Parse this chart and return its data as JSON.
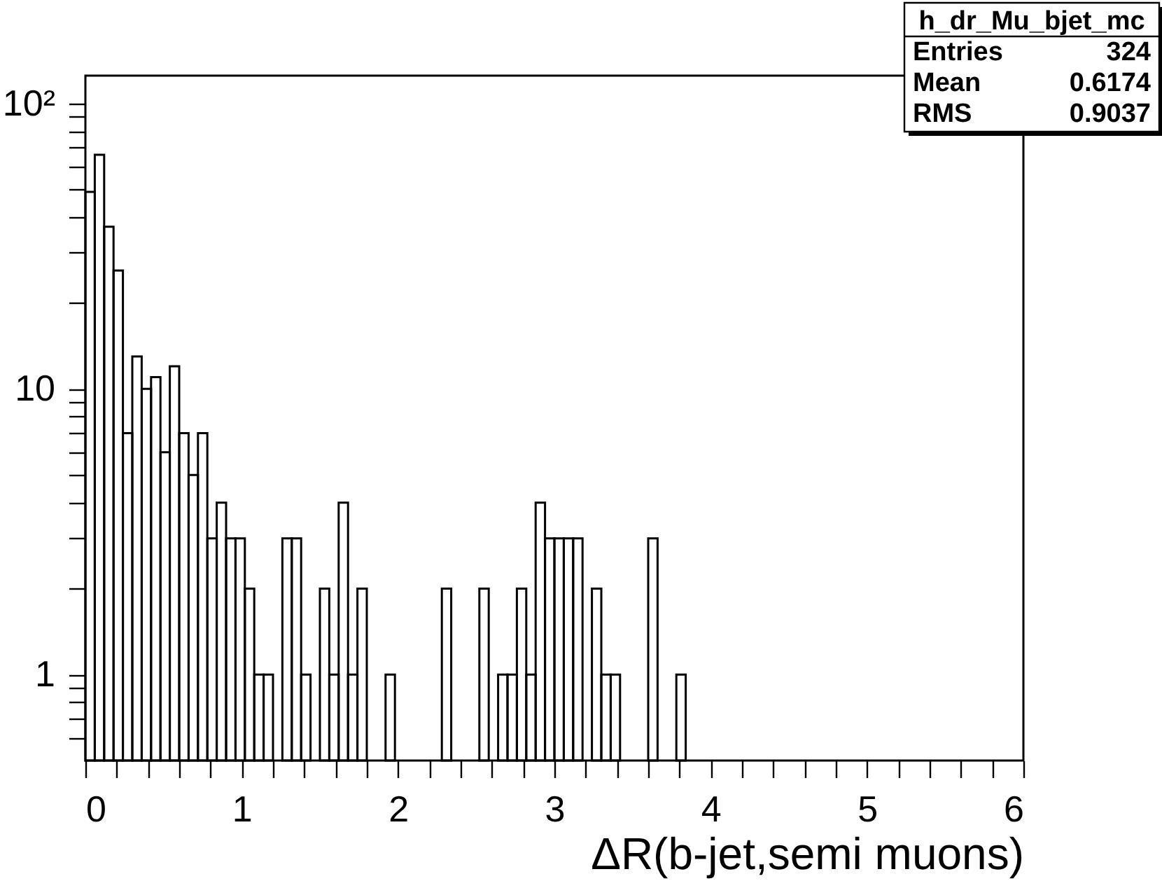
{
  "chart_data": {
    "type": "histogram",
    "xlabel": "ΔR(b-jet,semi muons)",
    "bins": [
      0,
      0.06,
      0.12,
      0.18,
      0.24,
      0.3,
      0.36,
      0.42,
      0.48,
      0.54,
      0.6,
      0.66,
      0.72,
      0.78,
      0.84,
      0.9,
      0.96,
      1.02,
      1.08,
      1.14,
      1.2,
      1.26,
      1.32,
      1.38,
      1.44,
      1.5,
      1.56,
      1.62,
      1.68,
      1.74,
      1.8,
      1.86,
      1.92,
      1.98,
      2.04,
      2.1,
      2.16,
      2.22,
      2.28,
      2.34,
      2.4,
      2.46,
      2.52,
      2.58,
      2.64,
      2.7,
      2.76,
      2.82,
      2.88,
      2.94,
      3.0,
      3.06,
      3.12,
      3.18,
      3.24,
      3.3,
      3.36,
      3.42,
      3.48,
      3.54,
      3.6,
      3.66,
      3.72,
      3.78,
      3.84
    ],
    "values": [
      49,
      66,
      37,
      26,
      7,
      13,
      10,
      11,
      6,
      12,
      7,
      5,
      7,
      3,
      4,
      3,
      3,
      2,
      1,
      1,
      null,
      3,
      3,
      1,
      null,
      2,
      1,
      4,
      1,
      2,
      null,
      null,
      1,
      null,
      null,
      null,
      null,
      null,
      2,
      null,
      null,
      null,
      2,
      null,
      1,
      1,
      2,
      1,
      4,
      3,
      3,
      3,
      3,
      null,
      2,
      1,
      1,
      null,
      null,
      null,
      3,
      null,
      null,
      1
    ],
    "color": "#000000",
    "log": "y",
    "xlim": [
      0,
      6
    ],
    "ylim": [
      0.5,
      125
    ],
    "xticks": [
      0,
      {
        "value": 0.2,
        "label": null
      },
      {
        "value": 0.4,
        "label": null
      },
      {
        "value": 0.6,
        "label": null
      },
      {
        "value": 0.8,
        "label": null
      },
      1,
      {
        "value": 1.2,
        "label": null
      },
      {
        "value": 1.4,
        "label": null
      },
      {
        "value": 1.6,
        "label": null
      },
      {
        "value": 1.8,
        "label": null
      },
      2,
      {
        "value": 2.2,
        "label": null
      },
      {
        "value": 2.4,
        "label": null
      },
      {
        "value": 2.6,
        "label": null
      },
      {
        "value": 2.8,
        "label": null
      },
      3,
      {
        "value": 3.2,
        "label": null
      },
      {
        "value": 3.4,
        "label": null
      },
      {
        "value": 3.6,
        "label": null
      },
      {
        "value": 3.8,
        "label": null
      },
      4,
      {
        "value": 4.2,
        "label": null
      },
      {
        "value": 4.4,
        "label": null
      },
      {
        "value": 4.6,
        "label": null
      },
      {
        "value": 4.8,
        "label": null
      },
      5,
      {
        "value": 5.2,
        "label": null
      },
      {
        "value": 5.4,
        "label": null
      },
      {
        "value": 5.6,
        "label": null
      },
      {
        "value": 5.8,
        "label": null
      },
      6
    ],
    "yticks": [
      {
        "value": 0.6,
        "label": null
      },
      {
        "value": 0.7,
        "label": null
      },
      {
        "value": 0.8,
        "label": null
      },
      {
        "value": 0.9,
        "label": null
      },
      1,
      {
        "value": 2,
        "label": null
      },
      {
        "value": 3,
        "label": null
      },
      {
        "value": 4,
        "label": null
      },
      {
        "value": 5,
        "label": null
      },
      {
        "value": 6,
        "label": null
      },
      {
        "value": 7,
        "label": null
      },
      {
        "value": 8,
        "label": null
      },
      {
        "value": 9,
        "label": null
      },
      10,
      {
        "value": 20,
        "label": null
      },
      {
        "value": 30,
        "label": null
      },
      {
        "value": 40,
        "label": null
      },
      {
        "value": 50,
        "label": null
      },
      {
        "value": 60,
        "label": null
      },
      {
        "value": 70,
        "label": null
      },
      {
        "value": 80,
        "label": null
      },
      {
        "value": 90,
        "label": null
      },
      {
        "value": 100,
        "label": "10²"
      }
    ],
    "grid": false,
    "annotations": [
      "h_dr_Mu_bjet_mc",
      "Entries 324",
      "Mean 0.6174",
      "RMS 0.9037"
    ]
  }
}
